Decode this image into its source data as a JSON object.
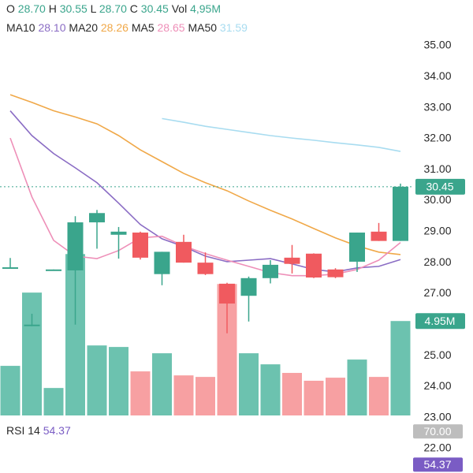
{
  "chart_data": {
    "type": "candlestick",
    "header": [
      {
        "label": "O",
        "text": "28.70"
      },
      {
        "label": "H",
        "text": "30.55"
      },
      {
        "label": "L",
        "text": "28.70"
      },
      {
        "label": "C",
        "text": "30.45"
      },
      {
        "label": "Vol",
        "text": "4,95M"
      }
    ],
    "open": [
      27.85,
      26.0,
      27.75,
      27.75,
      29.3,
      28.9,
      28.97,
      27.63,
      28.67,
      28.0,
      27.32,
      26.93,
      27.5,
      28.16,
      28.29,
      27.78,
      28.03,
      29.0,
      28.7
    ],
    "high": [
      28.15,
      26.35,
      27.78,
      29.5,
      29.7,
      29.15,
      29.0,
      28.35,
      28.9,
      28.33,
      27.35,
      27.55,
      28.08,
      28.57,
      28.3,
      27.82,
      28.97,
      29.28,
      30.55
    ],
    "low": [
      27.8,
      25.95,
      27.75,
      26.0,
      28.45,
      28.13,
      28.1,
      27.27,
      28.0,
      27.6,
      25.72,
      26.1,
      27.33,
      27.65,
      27.5,
      27.5,
      27.7,
      28.7,
      28.7
    ],
    "close": [
      27.85,
      26.0,
      27.78,
      29.3,
      29.6,
      29.0,
      28.16,
      28.35,
      28.0,
      27.63,
      26.68,
      27.5,
      27.93,
      27.96,
      27.52,
      27.53,
      28.97,
      28.7,
      30.45
    ],
    "volume": [
      2.6,
      6.44,
      1.44,
      8.46,
      3.67,
      3.59,
      2.31,
      3.26,
      2.1,
      2.02,
      6.89,
      3.26,
      2.68,
      2.23,
      1.82,
      1.98,
      2.93,
      2.02,
      4.95
    ],
    "volume_label": "4.95M",
    "volume_ylim": [
      0,
      10
    ],
    "series": [
      {
        "name": "MA10",
        "color": "#8a6cc4",
        "value_label": "28.10",
        "values": [
          32.9,
          32.1,
          31.52,
          31.06,
          30.58,
          29.92,
          29.23,
          28.77,
          28.52,
          28.21,
          28.03,
          28.08,
          28.13,
          27.96,
          27.78,
          27.7,
          27.83,
          27.88,
          28.1
        ]
      },
      {
        "name": "MA20",
        "color": "#f0a848",
        "value_label": "28.26",
        "values": [
          33.42,
          33.17,
          32.9,
          32.7,
          32.48,
          32.1,
          31.64,
          31.26,
          30.88,
          30.58,
          30.32,
          29.99,
          29.69,
          29.41,
          29.1,
          28.8,
          28.54,
          28.34,
          28.26
        ]
      },
      {
        "name": "MA5",
        "color": "#ee8fb8",
        "value_label": "28.65",
        "values": [
          32.02,
          30.12,
          28.72,
          28.21,
          28.13,
          28.39,
          28.8,
          28.85,
          28.54,
          28.29,
          28.08,
          27.88,
          27.68,
          27.58,
          27.58,
          27.63,
          27.78,
          28.08,
          28.65
        ]
      },
      {
        "name": "MA50",
        "color": "#a8dcf0",
        "value_label": "31.59",
        "values": [
          null,
          null,
          null,
          null,
          null,
          null,
          null,
          32.65,
          32.53,
          32.4,
          32.3,
          32.2,
          32.1,
          32.02,
          31.95,
          31.87,
          31.8,
          31.72,
          31.59
        ]
      }
    ],
    "last_price": {
      "value": 30.45,
      "label": "30.45"
    },
    "ylim": [
      22,
      35
    ],
    "yticks": [
      {
        "value": 35,
        "label": "35.00"
      },
      {
        "value": 34,
        "label": "34.00"
      },
      {
        "value": 33,
        "label": "33.00"
      },
      {
        "value": 32,
        "label": "32.00"
      },
      {
        "value": 31,
        "label": "31.00"
      },
      {
        "value": 30,
        "label": "30.00"
      },
      {
        "value": 29,
        "label": "29.00"
      },
      {
        "value": 28,
        "label": "28.00"
      },
      {
        "value": 27,
        "label": "27.00"
      },
      {
        "value": 25,
        "label": "25.00"
      },
      {
        "value": 24,
        "label": "24.00"
      },
      {
        "value": 23,
        "label": "23.00"
      },
      {
        "value": 22,
        "label": "22.00"
      }
    ],
    "rsi": {
      "label": "RSI 14",
      "value": 54.37,
      "value_label": "54.37",
      "level": {
        "value": 70,
        "label": "70.00"
      },
      "ylim": [
        40,
        75
      ]
    },
    "colors": {
      "up": "#3aa58c",
      "down": "#f05a5f",
      "up_volume": "#6cc2af",
      "down_volume": "#f7a0a2"
    }
  }
}
